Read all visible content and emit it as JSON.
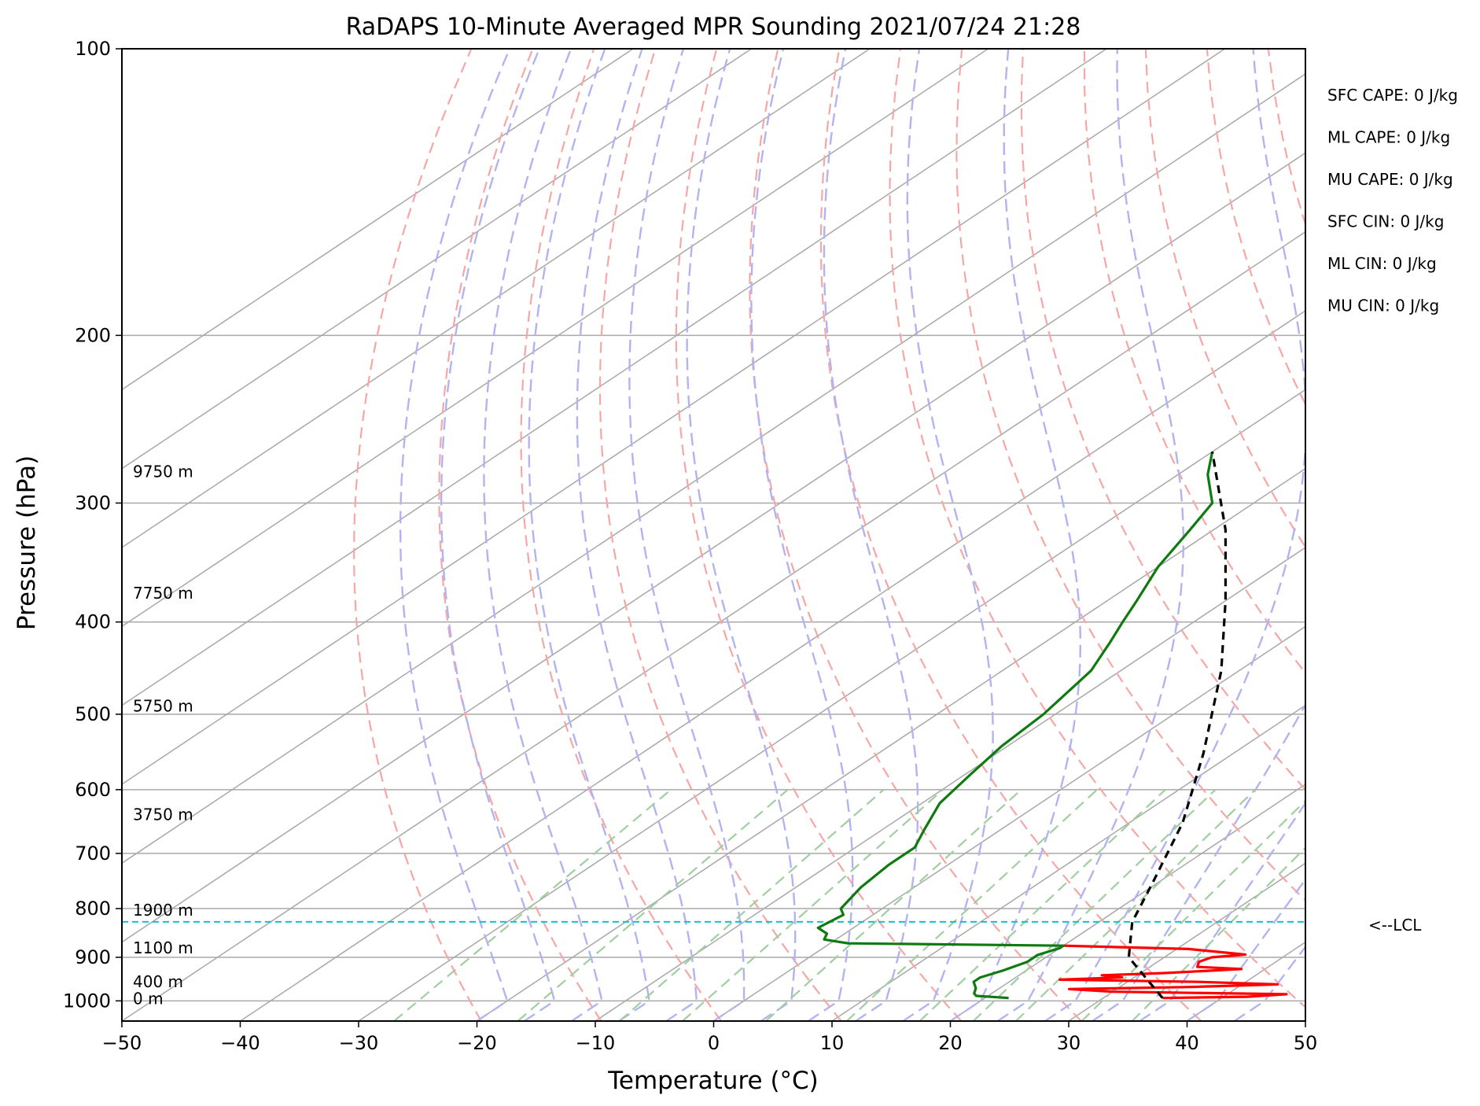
{
  "chart_data": {
    "type": "line",
    "chart_kind": "skew-t log-p sounding",
    "title": "RaDAPS 10-Minute Averaged MPR Sounding 2021/07/24 21:28",
    "xlabel": "Temperature (°C)",
    "ylabel": "Pressure (hPa)",
    "xlim": [
      -50,
      50
    ],
    "ylim": [
      1050,
      100
    ],
    "y_scale": "log",
    "x_ticks": [
      -50,
      -40,
      -30,
      -20,
      -10,
      0,
      10,
      20,
      30,
      40,
      50
    ],
    "x_tick_labels": [
      "−50",
      "−40",
      "−30",
      "−20",
      "−10",
      "0",
      "10",
      "20",
      "30",
      "40",
      "50"
    ],
    "y_ticks": [
      100,
      200,
      300,
      400,
      500,
      600,
      700,
      800,
      900,
      1000
    ],
    "y_tick_labels": [
      "100",
      "200",
      "300",
      "400",
      "500",
      "600",
      "700",
      "800",
      "900",
      "1000"
    ],
    "grid": true,
    "background_lines": {
      "isotherm_color": "#a9a9a9",
      "dry_adiabat_color": "#f7a6a6",
      "moist_adiabat_color": "#b3b3f2",
      "mixing_ratio_color": "#9fcf9f"
    },
    "series": [
      {
        "color": "#ff0000",
        "points": [
          {
            "p": 993,
            "t": 35.0
          },
          {
            "p": 990,
            "t": 42.0
          },
          {
            "p": 984,
            "t": 45.0
          },
          {
            "p": 978,
            "t": 30.0
          },
          {
            "p": 972,
            "t": 26.0
          },
          {
            "p": 967,
            "t": 36.0
          },
          {
            "p": 961,
            "t": 43.0
          },
          {
            "p": 955,
            "t": 36.0
          },
          {
            "p": 950,
            "t": 24.0
          },
          {
            "p": 945,
            "t": 29.0
          },
          {
            "p": 940,
            "t": 27.0
          },
          {
            "p": 935,
            "t": 32.0
          },
          {
            "p": 926,
            "t": 38.0
          },
          {
            "p": 921,
            "t": 34.0
          },
          {
            "p": 910,
            "t": 33.5
          },
          {
            "p": 900,
            "t": 34.0
          },
          {
            "p": 894,
            "t": 36.5
          },
          {
            "p": 882,
            "t": 31.0
          },
          {
            "p": 875,
            "t": 20.0
          }
        ]
      },
      {
        "color": "#0f7a0f",
        "points": [
          {
            "p": 993,
            "t": 22.0
          },
          {
            "p": 988,
            "t": 19.0
          },
          {
            "p": 982,
            "t": 18.5
          },
          {
            "p": 970,
            "t": 18.0
          },
          {
            "p": 955,
            "t": 17.0
          },
          {
            "p": 945,
            "t": 17.0
          },
          {
            "p": 930,
            "t": 18.0
          },
          {
            "p": 910,
            "t": 19.0
          },
          {
            "p": 895,
            "t": 19.0
          },
          {
            "p": 880,
            "t": 20.0
          },
          {
            "p": 875,
            "t": 20.0
          },
          {
            "p": 870,
            "t": 1.5
          },
          {
            "p": 862,
            "t": -1.0
          },
          {
            "p": 850,
            "t": -1.5
          },
          {
            "p": 838,
            "t": -3.0
          },
          {
            "p": 812,
            "t": -2.5
          },
          {
            "p": 800,
            "t": -3.5
          },
          {
            "p": 760,
            "t": -4.5
          },
          {
            "p": 720,
            "t": -5.0
          },
          {
            "p": 690,
            "t": -5.0
          },
          {
            "p": 660,
            "t": -6.5
          },
          {
            "p": 620,
            "t": -8.5
          },
          {
            "p": 580,
            "t": -9.5
          },
          {
            "p": 540,
            "t": -10.5
          },
          {
            "p": 500,
            "t": -11.0
          },
          {
            "p": 450,
            "t": -12.5
          },
          {
            "p": 420,
            "t": -14.5
          },
          {
            "p": 400,
            "t": -16.0
          },
          {
            "p": 380,
            "t": -17.5
          },
          {
            "p": 350,
            "t": -20.0
          },
          {
            "p": 320,
            "t": -22.0
          },
          {
            "p": 300,
            "t": -23.5
          },
          {
            "p": 280,
            "t": -27.5
          },
          {
            "p": 265,
            "t": -30.0
          }
        ]
      },
      {
        "color": "#000000",
        "style": "dashed",
        "points": [
          {
            "p": 993,
            "t": 35.0
          },
          {
            "p": 900,
            "t": 27.0
          },
          {
            "p": 826,
            "t": 22.8
          },
          {
            "p": 750,
            "t": 19.5
          },
          {
            "p": 650,
            "t": 14.5
          },
          {
            "p": 550,
            "t": 7.5
          },
          {
            "p": 450,
            "t": -1.5
          },
          {
            "p": 380,
            "t": -10.0
          },
          {
            "p": 320,
            "t": -19.0
          },
          {
            "p": 265,
            "t": -30.0
          }
        ]
      }
    ],
    "lcl": {
      "p": 826,
      "label": "<--LCL",
      "color": "#17becf"
    },
    "height_labels": [
      {
        "p": 995,
        "label": "0 m"
      },
      {
        "p": 955,
        "label": "400 m"
      },
      {
        "p": 880,
        "label": "1100 m"
      },
      {
        "p": 803,
        "label": "1900 m"
      },
      {
        "p": 637,
        "label": "3750 m"
      },
      {
        "p": 490,
        "label": "5750 m"
      },
      {
        "p": 373,
        "label": "7750 m"
      },
      {
        "p": 278,
        "label": "9750 m"
      }
    ],
    "annotations": [
      "SFC CAPE: 0 J/kg",
      "ML CAPE: 0 J/kg",
      "MU CAPE: 0 J/kg",
      "SFC CIN: 0 J/kg",
      "ML CIN: 0 J/kg",
      "MU CIN: 0 J/kg"
    ]
  }
}
